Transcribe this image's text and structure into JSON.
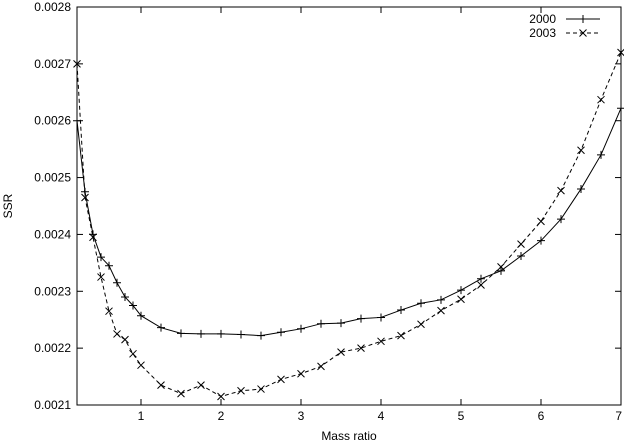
{
  "chart_data": {
    "type": "line",
    "title": "",
    "xlabel": "Mass ratio",
    "ylabel": "SSR",
    "xlim": [
      0.2,
      7
    ],
    "ylim": [
      0.0021,
      0.0028
    ],
    "grid": false,
    "legend_position": "top-right",
    "x_ticks": [
      1,
      2,
      3,
      4,
      5,
      6,
      7
    ],
    "y_ticks": [
      0.0021,
      0.0022,
      0.0023,
      0.0024,
      0.0025,
      0.0026,
      0.0027,
      0.0028
    ],
    "x_tick_labels": [
      "1",
      "2",
      "3",
      "4",
      "5",
      "6",
      "7"
    ],
    "y_tick_labels": [
      "0.0021",
      "0.0022",
      "0.0023",
      "0.0024",
      "0.0025",
      "0.0026",
      "0.0027",
      "0.0028"
    ],
    "series": [
      {
        "name": "2000",
        "line_style": "solid",
        "marker": "+",
        "color": "#000000",
        "x": [
          0.2,
          0.3,
          0.4,
          0.5,
          0.6,
          0.7,
          0.8,
          0.9,
          1.0,
          1.25,
          1.5,
          1.75,
          2.0,
          2.25,
          2.5,
          2.75,
          3.0,
          3.25,
          3.5,
          3.75,
          4.0,
          4.25,
          4.5,
          4.75,
          5.0,
          5.25,
          5.5,
          5.75,
          6.0,
          6.25,
          6.5,
          6.75,
          7.0
        ],
        "y": [
          0.0026,
          0.002475,
          0.0024,
          0.00236,
          0.002345,
          0.002315,
          0.00229,
          0.002275,
          0.002257,
          0.002236,
          0.002226,
          0.002225,
          0.002225,
          0.002224,
          0.002222,
          0.002228,
          0.002234,
          0.002243,
          0.002244,
          0.002252,
          0.002254,
          0.002267,
          0.002279,
          0.002285,
          0.002302,
          0.002322,
          0.002336,
          0.002362,
          0.002389,
          0.002427,
          0.00248,
          0.00254,
          0.002622
        ]
      },
      {
        "name": "2003",
        "line_style": "dashed",
        "marker": "x",
        "color": "#000000",
        "x": [
          0.2,
          0.3,
          0.4,
          0.5,
          0.6,
          0.7,
          0.8,
          0.9,
          1.0,
          1.25,
          1.5,
          1.75,
          2.0,
          2.25,
          2.5,
          2.75,
          3.0,
          3.25,
          3.5,
          3.75,
          4.0,
          4.25,
          4.5,
          4.75,
          5.0,
          5.25,
          5.5,
          5.75,
          6.0,
          6.25,
          6.5,
          6.75,
          7.0
        ],
        "y": [
          0.0027,
          0.002465,
          0.002395,
          0.002325,
          0.002265,
          0.002225,
          0.002215,
          0.00219,
          0.00217,
          0.002135,
          0.00212,
          0.002135,
          0.002115,
          0.002125,
          0.002128,
          0.002145,
          0.002155,
          0.002168,
          0.002193,
          0.0022,
          0.002212,
          0.002222,
          0.002242,
          0.002266,
          0.002286,
          0.002311,
          0.002343,
          0.002383,
          0.002423,
          0.002477,
          0.002548,
          0.002637,
          0.00272
        ]
      }
    ]
  }
}
